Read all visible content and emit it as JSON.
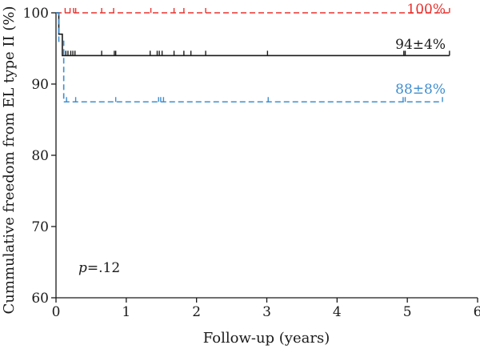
{
  "chart_data": {
    "type": "line",
    "title": "",
    "xlabel": "Follow-up (years)",
    "ylabel": "Cummulative freedom from EL type II (%)",
    "xlim": [
      0,
      6
    ],
    "ylim": [
      60,
      100
    ],
    "xticks": [
      0,
      1,
      2,
      3,
      4,
      5,
      6
    ],
    "yticks": [
      60,
      70,
      80,
      90,
      100
    ],
    "grid": false,
    "annotation": {
      "prefix": "p",
      "text": "=.12"
    },
    "series": [
      {
        "label": "100%",
        "color": "#e8322e",
        "dash": true,
        "steps": [
          [
            0,
            100
          ],
          [
            5.6,
            100
          ]
        ],
        "censor": [
          0.13,
          0.2,
          0.25,
          0.28,
          0.65,
          0.82,
          1.35,
          1.68,
          1.82,
          2.13,
          5.6
        ]
      },
      {
        "label": "94±4%",
        "color": "#1a1a1a",
        "dash": false,
        "steps": [
          [
            0,
            100
          ],
          [
            0.04,
            97
          ],
          [
            0.09,
            94
          ],
          [
            5.6,
            94
          ]
        ],
        "censor": [
          0.14,
          0.17,
          0.21,
          0.24,
          0.27,
          0.65,
          0.83,
          0.85,
          1.34,
          1.44,
          1.47,
          1.51,
          1.68,
          1.82,
          1.92,
          2.13,
          3.01,
          4.95,
          4.97,
          5.6
        ]
      },
      {
        "label": "88±8%",
        "color": "#3e8ed0",
        "dash": true,
        "steps": [
          [
            0,
            100
          ],
          [
            0.04,
            96
          ],
          [
            0.11,
            87.5
          ],
          [
            5.5,
            87.5
          ]
        ],
        "censor": [
          0.15,
          0.28,
          0.85,
          1.46,
          1.49,
          1.53,
          3.02,
          4.94,
          4.97,
          5.5
        ]
      }
    ]
  }
}
